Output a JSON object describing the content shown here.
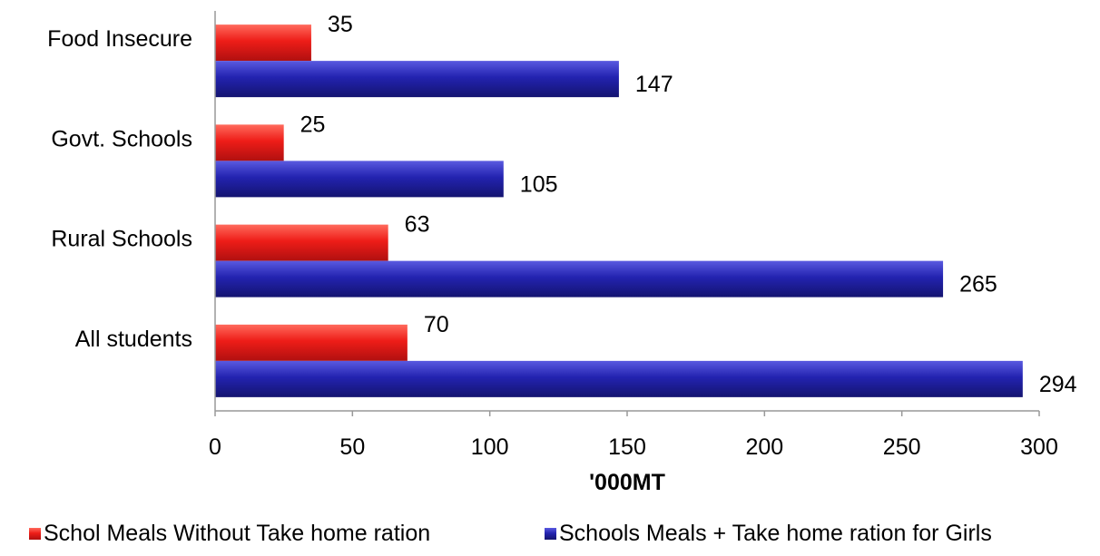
{
  "chart_data": {
    "type": "bar",
    "orientation": "horizontal",
    "categories": [
      "Food Insecure",
      "Govt. Schools",
      "Rural Schools",
      "All students"
    ],
    "series": [
      {
        "name": "Schol Meals Without Take home ration",
        "color": "#e8201c",
        "values": [
          35,
          25,
          63,
          70
        ]
      },
      {
        "name": "Schools Meals + Take home ration for Girls",
        "color": "#2222a8",
        "values": [
          147,
          105,
          265,
          294
        ]
      }
    ],
    "xlabel": "'000MT",
    "ylabel": "",
    "xlim": [
      0,
      300
    ],
    "xticks": [
      0,
      50,
      100,
      150,
      200,
      250,
      300
    ],
    "grid": false,
    "legend_position": "bottom"
  }
}
